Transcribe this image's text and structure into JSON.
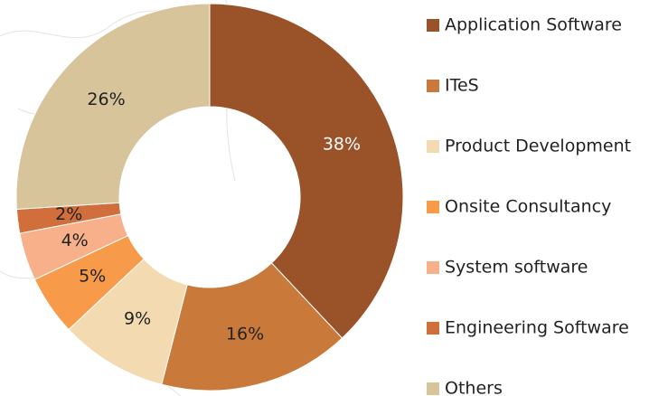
{
  "chart_data": {
    "type": "donut",
    "categories": [
      "Application Software",
      "ITeS",
      "Product Development",
      "Onsite Consultancy",
      "System software",
      "Engineering Software",
      "Others"
    ],
    "values": [
      38,
      16,
      9,
      5,
      4,
      2,
      26
    ],
    "value_labels": [
      "38%",
      "16%",
      "9%",
      "5%",
      "4%",
      "2%",
      "26%"
    ],
    "colors": [
      "#9a5229",
      "#c97a3a",
      "#f3dab0",
      "#f79a4a",
      "#f8b08a",
      "#d06f3c",
      "#d8c49a"
    ],
    "legend": "right"
  }
}
